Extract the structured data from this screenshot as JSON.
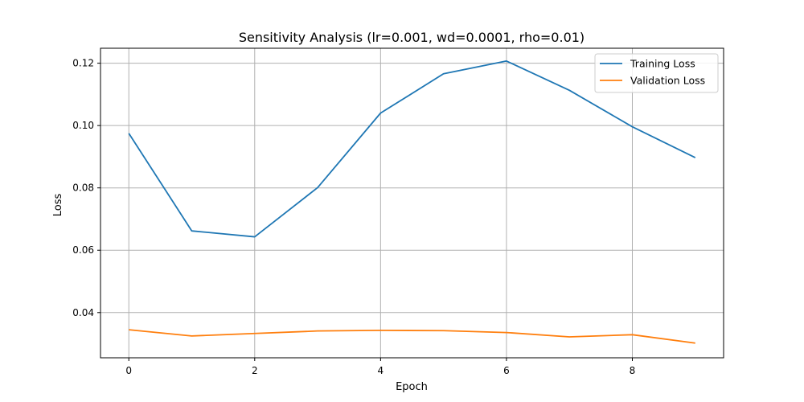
{
  "chart_data": {
    "type": "line",
    "title": "Sensitivity Analysis (lr=0.001, wd=0.0001, rho=0.01)",
    "xlabel": "Epoch",
    "ylabel": "Loss",
    "x": [
      0,
      1,
      2,
      3,
      4,
      5,
      6,
      7,
      8,
      9
    ],
    "xlim": [
      -0.45,
      9.45
    ],
    "ylim": [
      0.0255,
      0.1248
    ],
    "xticks": [
      0,
      2,
      4,
      6,
      8
    ],
    "yticks": [
      0.04,
      0.06,
      0.08,
      0.1,
      0.12
    ],
    "xtick_labels": [
      "0",
      "2",
      "4",
      "6",
      "8"
    ],
    "ytick_labels": [
      "0.04",
      "0.06",
      "0.08",
      "0.10",
      "0.12"
    ],
    "grid": true,
    "legend_position": "upper right",
    "series": [
      {
        "name": "Training Loss",
        "color": "#1f77b4",
        "values": [
          0.0975,
          0.0662,
          0.0643,
          0.0801,
          0.104,
          0.1166,
          0.1207,
          0.1113,
          0.0996,
          0.0897
        ]
      },
      {
        "name": "Validation Loss",
        "color": "#ff7f0e",
        "values": [
          0.0345,
          0.0325,
          0.0333,
          0.0341,
          0.0343,
          0.0342,
          0.0336,
          0.0322,
          0.0329,
          0.0302
        ]
      }
    ]
  }
}
